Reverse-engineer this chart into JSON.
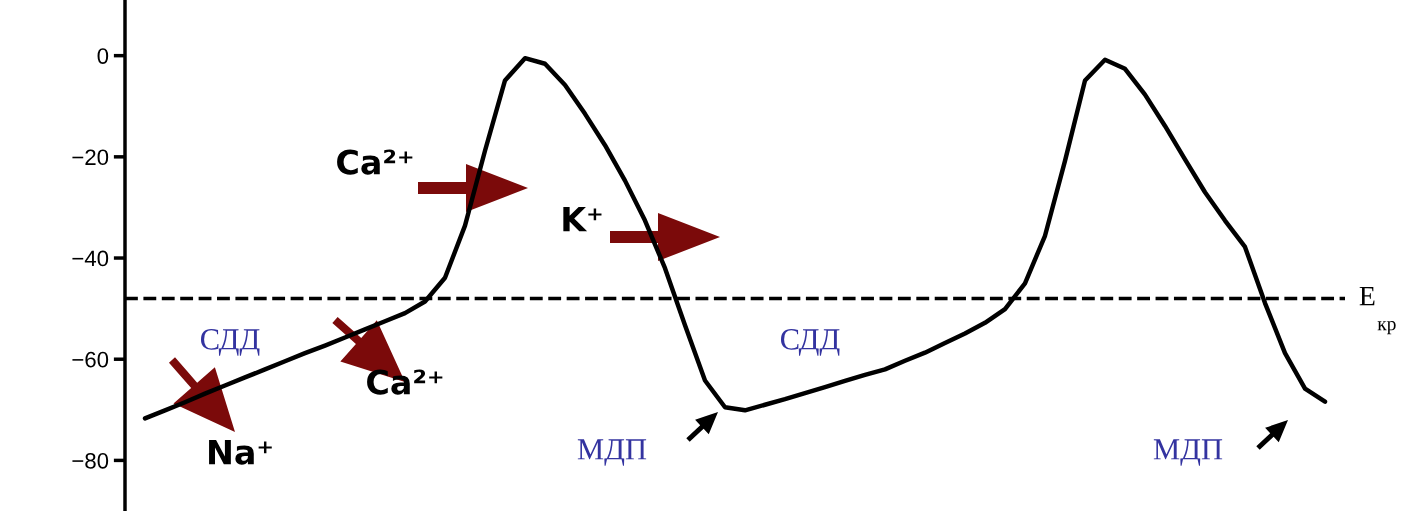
{
  "chart_data": {
    "type": "line",
    "categories": [
      null,
      null,
      null,
      null,
      null,
      null,
      null,
      null,
      null,
      null,
      null,
      null,
      null,
      null,
      null,
      null,
      null,
      null,
      null,
      null,
      null,
      null,
      null,
      null,
      null,
      null,
      null,
      null,
      null,
      null,
      null,
      null,
      null,
      null,
      null,
      null,
      null,
      null,
      null,
      null,
      null,
      null,
      null,
      null,
      null,
      null,
      null,
      null,
      null,
      null,
      null,
      null,
      null,
      null,
      null,
      null,
      null,
      null,
      null,
      null
    ],
    "series": [
      {
        "color": "#000000",
        "values": [
          -71.7,
          -70.1,
          -68.5,
          -66.8,
          -65.2,
          -63.6,
          -62.0,
          -60.4,
          -58.8,
          -57.3,
          -55.7,
          -54.1,
          -52.5,
          -50.9,
          -48.6,
          -43.9,
          -33.6,
          -18.8,
          -4.9,
          -0.5,
          -1.6,
          -5.8,
          -11.5,
          -17.7,
          -24.7,
          -32.6,
          -42.0,
          -53.3,
          -64.2,
          -69.5,
          -70.1,
          -69.0,
          -67.9,
          -66.7,
          -65.5,
          -64.3,
          -63.1,
          -62.0,
          -60.3,
          -58.7,
          -56.8,
          -54.9,
          -52.8,
          -50.1,
          -45.0,
          -35.6,
          -20.8,
          -4.9,
          -0.8,
          -2.6,
          -7.7,
          -13.9,
          -20.5,
          -27.0,
          -32.6,
          -37.8,
          -48.9,
          -58.8,
          -65.8,
          -68.4
        ]
      }
    ],
    "ylim": [
      -90,
      11
    ],
    "yticks": [
      {
        "value": 0,
        "label": "0"
      },
      {
        "value": -20,
        "label": "−20"
      },
      {
        "value": -40,
        "label": "−40"
      },
      {
        "value": -60,
        "label": "−60"
      },
      {
        "value": -80,
        "label": "−80"
      }
    ],
    "tick_labels": "y",
    "line_style": "solid",
    "ref_lines": [
      {
        "axis": "y",
        "value": -48,
        "label": "E$_{кр}$",
        "line_style": "dashed",
        "color": "#000000"
      }
    ],
    "annotations": [
      "Ca²⁺",
      "K⁺",
      "СДД",
      "Ca²⁺",
      "Na⁺",
      "МДП",
      "СДД",
      "МДП"
    ]
  }
}
